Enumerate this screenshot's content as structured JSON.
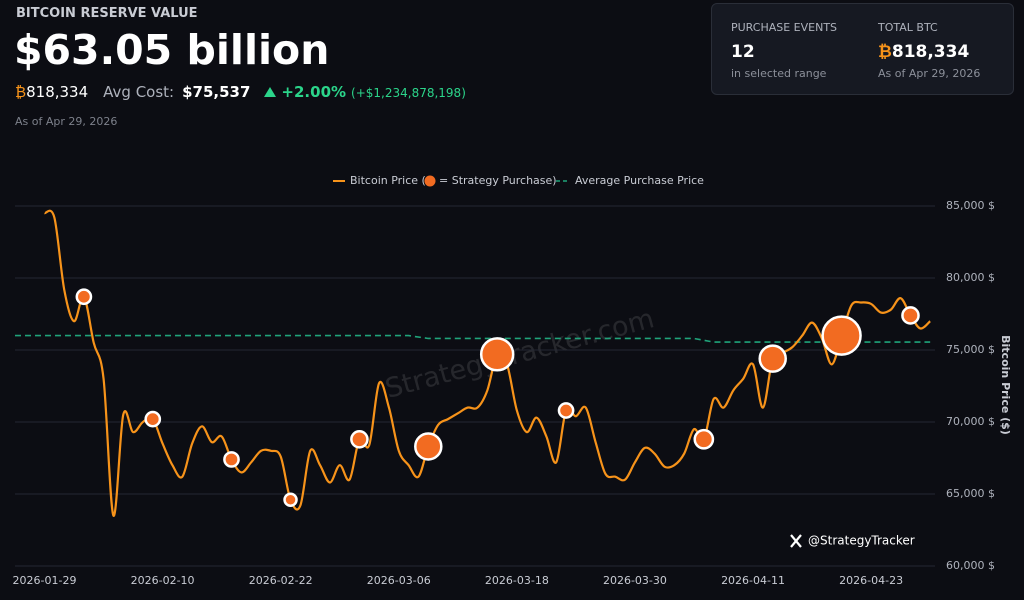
{
  "header": {
    "title": "BITCOIN RESERVE VALUE",
    "value": "$63.05 billion",
    "btc_symbol": "₿",
    "holdings": "818,334",
    "avg_cost_label": "Avg Cost:",
    "avg_cost": "$75,537",
    "change_pct": "+2.00%",
    "change_usd": "(+$1,234,878,198)",
    "as_of": "As of Apr 29, 2026"
  },
  "stats": [
    {
      "label": "PURCHASE EVENTS",
      "value": "12",
      "note": "in selected range"
    },
    {
      "label": "TOTAL BTC",
      "symbol": "₿",
      "value": "818,334",
      "note": "As of Apr 29, 2026"
    }
  ],
  "watermark": "StrategyTracker.com",
  "credit": "@StrategyTracker",
  "chart_data": {
    "type": "line",
    "y_label": "Bitcoin Price ($)",
    "xlim": [
      "2026-01-26",
      "2026-04-30"
    ],
    "xticks": [
      "2026-01-29",
      "2026-02-10",
      "2026-02-22",
      "2026-03-06",
      "2026-03-18",
      "2026-03-30",
      "2026-04-11",
      "2026-04-23"
    ],
    "ylim": [
      60000,
      85000
    ],
    "yticks": [
      {
        "value": 60000,
        "label": "60,000 $"
      },
      {
        "value": 65000,
        "label": "65,000 $"
      },
      {
        "value": 70000,
        "label": "70,000 $"
      },
      {
        "value": 75000,
        "label": "75,000 $"
      },
      {
        "value": 80000,
        "label": "80,000 $"
      },
      {
        "value": 85000,
        "label": "85,000 $"
      }
    ],
    "grid": true,
    "series": [
      {
        "name": "Bitcoin Price (",
        "color": "#f7931a",
        "x": [
          "2026-01-29",
          "2026-01-30",
          "2026-01-31",
          "2026-02-01",
          "2026-02-02",
          "2026-02-03",
          "2026-02-04",
          "2026-02-05",
          "2026-02-06",
          "2026-02-07",
          "2026-02-08",
          "2026-02-09",
          "2026-02-10",
          "2026-02-11",
          "2026-02-12",
          "2026-02-13",
          "2026-02-14",
          "2026-02-15",
          "2026-02-16",
          "2026-02-17",
          "2026-02-18",
          "2026-02-19",
          "2026-02-20",
          "2026-02-21",
          "2026-02-22",
          "2026-02-23",
          "2026-02-24",
          "2026-02-25",
          "2026-02-26",
          "2026-02-27",
          "2026-02-28",
          "2026-03-01",
          "2026-03-02",
          "2026-03-03",
          "2026-03-04",
          "2026-03-05",
          "2026-03-06",
          "2026-03-07",
          "2026-03-08",
          "2026-03-09",
          "2026-03-10",
          "2026-03-11",
          "2026-03-12",
          "2026-03-13",
          "2026-03-14",
          "2026-03-15",
          "2026-03-16",
          "2026-03-17",
          "2026-03-18",
          "2026-03-19",
          "2026-03-20",
          "2026-03-21",
          "2026-03-22",
          "2026-03-23",
          "2026-03-24",
          "2026-03-25",
          "2026-03-26",
          "2026-03-27",
          "2026-03-28",
          "2026-03-29",
          "2026-03-30",
          "2026-03-31",
          "2026-04-01",
          "2026-04-02",
          "2026-04-03",
          "2026-04-04",
          "2026-04-05",
          "2026-04-06",
          "2026-04-07",
          "2026-04-08",
          "2026-04-09",
          "2026-04-10",
          "2026-04-11",
          "2026-04-12",
          "2026-04-13",
          "2026-04-14",
          "2026-04-15",
          "2026-04-16",
          "2026-04-17",
          "2026-04-18",
          "2026-04-19",
          "2026-04-20",
          "2026-04-21",
          "2026-04-22",
          "2026-04-23",
          "2026-04-24",
          "2026-04-25",
          "2026-04-26",
          "2026-04-27",
          "2026-04-28",
          "2026-04-29"
        ],
        "values": [
          84500,
          84200,
          79200,
          77000,
          78700,
          75500,
          73000,
          63500,
          70500,
          69300,
          70000,
          70200,
          68500,
          67000,
          66200,
          68500,
          69700,
          68600,
          69000,
          67400,
          66500,
          67200,
          68000,
          68000,
          67600,
          64600,
          64200,
          68000,
          67000,
          65800,
          67000,
          66000,
          68800,
          68400,
          72700,
          71000,
          68000,
          67000,
          66200,
          68300,
          69800,
          70200,
          70600,
          71000,
          71000,
          72200,
          74700,
          74000,
          70800,
          69300,
          70300,
          69000,
          67200,
          70800,
          70400,
          71000,
          68600,
          66400,
          66200,
          66000,
          67200,
          68200,
          67800,
          66900,
          67000,
          67800,
          69500,
          68800,
          71600,
          71000,
          72200,
          73000,
          74000,
          71000,
          74400,
          74800,
          75200,
          76000,
          76900,
          75800,
          74000,
          76000,
          78100,
          78300,
          78200,
          77600,
          77800,
          78600,
          77400,
          76500,
          77000
        ]
      },
      {
        "name": "= Strategy Purchase)",
        "type": "scatter",
        "color": "#f26b21",
        "x": [
          "2026-02-02",
          "2026-02-09",
          "2026-02-17",
          "2026-02-23",
          "2026-03-02",
          "2026-03-09",
          "2026-03-16",
          "2026-03-23",
          "2026-04-06",
          "2026-04-13",
          "2026-04-20",
          "2026-04-27"
        ],
        "values": [
          78700,
          70200,
          67400,
          64600,
          68800,
          68300,
          74700,
          70800,
          68800,
          74400,
          76000,
          77400
        ],
        "sizes": [
          1.4,
          1.4,
          1.4,
          1,
          1.8,
          4.7,
          7.1,
          1.4,
          2.3,
          4.7,
          10,
          1.8
        ]
      },
      {
        "name": "Average Purchase Price",
        "type": "dashed",
        "color": "#1fa37a",
        "x": [
          "2026-01-26",
          "2026-03-07",
          "2026-03-09",
          "2026-04-05",
          "2026-04-07",
          "2026-04-29"
        ],
        "values": [
          76000,
          76000,
          75800,
          75800,
          75550,
          75550
        ]
      }
    ]
  }
}
